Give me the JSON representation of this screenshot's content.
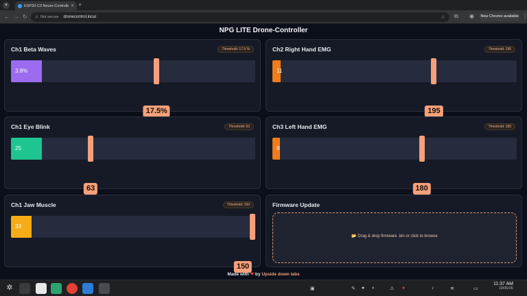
{
  "browser": {
    "tab_title": "ESP32-C3 Neuro-Controller",
    "security": "Not secure",
    "url": "dronecontrol.local",
    "update_label": "New Chrome available"
  },
  "page": {
    "title": "NPG LITE Drone-Controller",
    "footer": {
      "prefix": "Made with",
      "by": "by",
      "link": "Upside down labs"
    }
  },
  "cards": [
    {
      "name": "Ch1 Beta Waves",
      "threshold_badge": "Threshold: 17.5 %",
      "value_text": "3.8%",
      "value_fraction": 0.125,
      "threshold_fraction": 0.585,
      "threshold_text": "17.5%",
      "fill_color": "#9b6cf0"
    },
    {
      "name": "Ch2 Right Hand EMG",
      "threshold_badge": "Threshold: 195",
      "value_text": "11",
      "value_fraction": 0.035,
      "threshold_fraction": 0.65,
      "threshold_text": "195",
      "fill_color": "#f07c1a"
    },
    {
      "name": "Ch1 Eye Blink",
      "threshold_badge": "Threshold: 63",
      "value_text": "25",
      "value_fraction": 0.125,
      "threshold_fraction": 0.315,
      "threshold_text": "63",
      "fill_color": "#1fc590"
    },
    {
      "name": "Ch3 Left Hand EMG",
      "threshold_badge": "Threshold: 180",
      "value_text": "9",
      "value_fraction": 0.03,
      "threshold_fraction": 0.6,
      "threshold_text": "180",
      "fill_color": "#f07c1a"
    },
    {
      "name": "Ch1 Jaw Muscle",
      "threshold_badge": "Threshold: 150",
      "value_text": "33",
      "value_fraction": 0.085,
      "threshold_fraction": 1.0,
      "threshold_text": "150",
      "fill_color": "#f5ac16"
    }
  ],
  "firmware": {
    "title": "Firmware Update",
    "drop_text": "📂 Drag & drop firmware .bin or click to browse"
  },
  "taskbar": {
    "time": "11:37 AM",
    "date": "19/06/26"
  }
}
